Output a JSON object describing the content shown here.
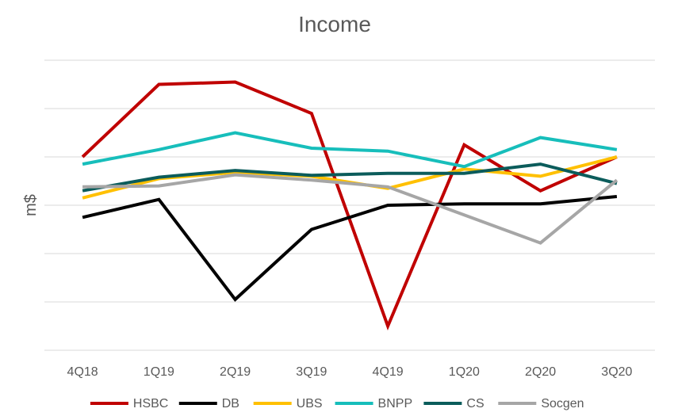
{
  "chart_data": {
    "type": "line",
    "title": "Income",
    "xlabel": "",
    "ylabel": "m$",
    "categories": [
      "4Q18",
      "1Q19",
      "2Q19",
      "3Q19",
      "4Q19",
      "1Q20",
      "2Q20",
      "3Q20"
    ],
    "ylim": [
      -3,
      3
    ],
    "grid": true,
    "legend": "bottom",
    "series": [
      {
        "name": "HSBC",
        "color": "#C00000",
        "values": [
          1.0,
          2.5,
          2.55,
          1.9,
          -2.5,
          1.25,
          0.3,
          1.0
        ]
      },
      {
        "name": "DB",
        "color": "#000000",
        "values": [
          -0.25,
          0.12,
          -1.95,
          -0.5,
          0.0,
          0.03,
          0.03,
          0.18
        ]
      },
      {
        "name": "UBS",
        "color": "#FFC000",
        "values": [
          0.15,
          0.55,
          0.68,
          0.6,
          0.35,
          0.75,
          0.6,
          1.0
        ]
      },
      {
        "name": "BNPP",
        "color": "#17BEBB",
        "values": [
          0.85,
          1.15,
          1.5,
          1.18,
          1.12,
          0.8,
          1.4,
          1.15
        ]
      },
      {
        "name": "CS",
        "color": "#0B5C5B",
        "values": [
          0.3,
          0.58,
          0.72,
          0.62,
          0.66,
          0.66,
          0.85,
          0.45
        ]
      },
      {
        "name": "Socgen",
        "color": "#A6A6A6",
        "values": [
          0.38,
          0.4,
          0.63,
          0.52,
          0.38,
          -0.2,
          -0.78,
          0.52
        ]
      }
    ]
  }
}
